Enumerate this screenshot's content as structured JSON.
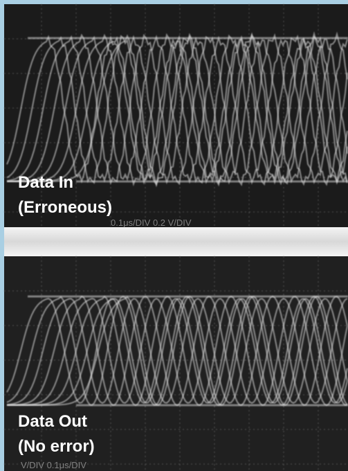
{
  "panels": [
    {
      "label": [
        "Data In",
        "(Erroneous)"
      ],
      "readout": "0.1μs/DIV  0.2 V/DIV"
    },
    {
      "label": [
        "Data Out",
        "(No error)"
      ],
      "readout": "V/DIV  0.1μs/DIV"
    }
  ]
}
